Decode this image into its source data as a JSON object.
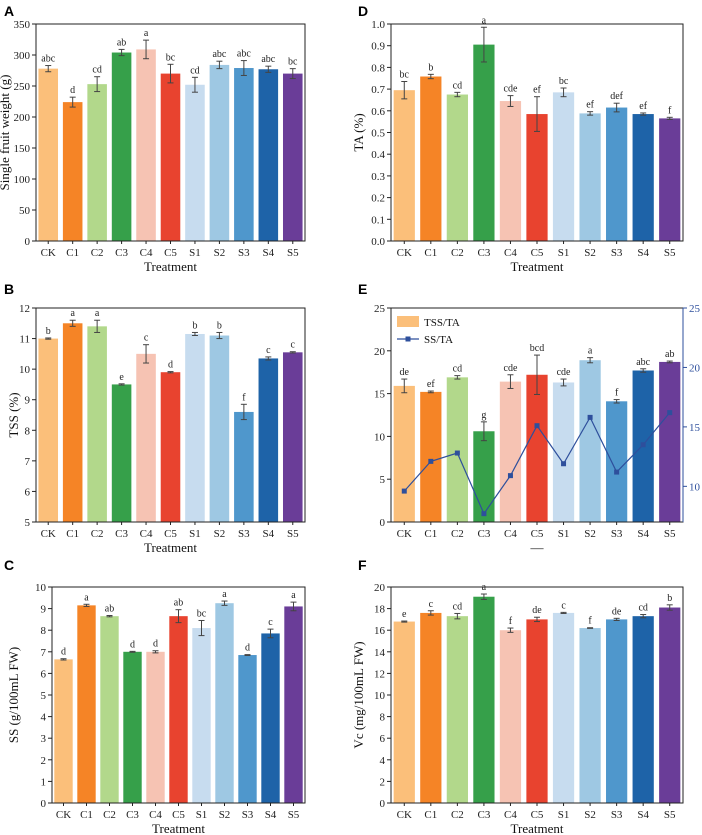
{
  "colors": {
    "CK": "#fbbf7a",
    "C1": "#f58426",
    "C2": "#b2d88b",
    "C3": "#36a04a",
    "C4": "#f6c3b3",
    "C5": "#e8432f",
    "S1": "#c7dcef",
    "S2": "#9ec8e3",
    "S3": "#4f97cc",
    "S4": "#1e63a8",
    "S5": "#6a3d98",
    "line": "#2e4f9c"
  },
  "chart_data": [
    {
      "panel": "A",
      "type": "bar",
      "categories": [
        "CK",
        "C1",
        "C2",
        "C3",
        "C4",
        "C5",
        "S1",
        "S2",
        "S3",
        "S4",
        "S5"
      ],
      "values": [
        278,
        224,
        253,
        304,
        309,
        270,
        252,
        284,
        279,
        277,
        270
      ],
      "errors": [
        5,
        8,
        12,
        5,
        15,
        15,
        12,
        6,
        12,
        5,
        8
      ],
      "letters": [
        "abc",
        "d",
        "cd",
        "ab",
        "a",
        "bc",
        "cd",
        "abc",
        "abc",
        "abc",
        "bc"
      ],
      "ylabel": "Single fruit weight (g)",
      "xlabel": "Treatment",
      "ylim": [
        0,
        350
      ],
      "yticks": [
        0,
        50,
        100,
        150,
        200,
        250,
        300,
        350
      ]
    },
    {
      "panel": "D",
      "type": "bar",
      "categories": [
        "CK",
        "C1",
        "C2",
        "C3",
        "C4",
        "C5",
        "S1",
        "S2",
        "S3",
        "S4",
        "S5"
      ],
      "values": [
        0.695,
        0.758,
        0.675,
        0.905,
        0.645,
        0.585,
        0.685,
        0.588,
        0.615,
        0.585,
        0.565
      ],
      "errors": [
        0.04,
        0.01,
        0.01,
        0.08,
        0.025,
        0.08,
        0.02,
        0.008,
        0.02,
        0.005,
        0.005
      ],
      "letters": [
        "bc",
        "b",
        "cd",
        "a",
        "cde",
        "ef",
        "bc",
        "ef",
        "def",
        "ef",
        "f"
      ],
      "ylabel": "TA (%)",
      "xlabel": "Treatment",
      "ylim": [
        0,
        1.0
      ],
      "yticks": [
        "0.0",
        "0.1",
        "0.2",
        "0.3",
        "0.4",
        "0.5",
        "0.6",
        "0.7",
        "0.8",
        "0.9",
        "1.0"
      ]
    },
    {
      "panel": "B",
      "type": "bar",
      "categories": [
        "CK",
        "C1",
        "C2",
        "C3",
        "C4",
        "C5",
        "S1",
        "S2",
        "S3",
        "S4",
        "S5"
      ],
      "values": [
        11.0,
        11.5,
        11.4,
        9.5,
        10.5,
        9.9,
        11.15,
        11.1,
        8.6,
        10.35,
        10.55
      ],
      "errors": [
        0.02,
        0.1,
        0.2,
        0.02,
        0.3,
        0.02,
        0.05,
        0.1,
        0.25,
        0.05,
        0.02
      ],
      "letters": [
        "b",
        "a",
        "a",
        "e",
        "c",
        "d",
        "b",
        "b",
        "f",
        "c",
        "c"
      ],
      "ylabel": "TSS (%)",
      "xlabel": "Treatment",
      "ylim": [
        5,
        12
      ],
      "yticks": [
        5,
        6,
        7,
        8,
        9,
        10,
        11,
        12
      ]
    },
    {
      "panel": "E",
      "type": "bar+line",
      "categories": [
        "CK",
        "C1",
        "C2",
        "C3",
        "C4",
        "C5",
        "S1",
        "S2",
        "S3",
        "S4",
        "S5"
      ],
      "series": [
        {
          "name": "TSS/TA",
          "type": "bar",
          "values": [
            15.9,
            15.2,
            16.9,
            10.6,
            16.4,
            17.2,
            16.3,
            18.9,
            14.1,
            17.7,
            18.7
          ],
          "errors": [
            0.8,
            0.1,
            0.2,
            1.1,
            0.8,
            2.3,
            0.4,
            0.3,
            0.2,
            0.2,
            0.1
          ],
          "letters": [
            "de",
            "ef",
            "cd",
            "g",
            "cde",
            "bcd",
            "cde",
            "a",
            "f",
            "abc",
            "ab"
          ]
        },
        {
          "name": "SS/TA",
          "type": "line",
          "axis": "right",
          "values": [
            9.6,
            12.1,
            12.8,
            7.7,
            10.9,
            15.1,
            11.9,
            15.8,
            11.2,
            13.5,
            16.2
          ]
        }
      ],
      "xlabel": "—",
      "ylim": [
        0,
        25
      ],
      "yticks": [
        0,
        5,
        10,
        15,
        20,
        25
      ],
      "y2lim": [
        7,
        25
      ],
      "y2ticks": [
        10,
        15,
        20,
        25
      ]
    },
    {
      "panel": "C",
      "type": "bar",
      "categories": [
        "CK",
        "C1",
        "C2",
        "C3",
        "C4",
        "C5",
        "S1",
        "S2",
        "S3",
        "S4",
        "S5"
      ],
      "values": [
        6.65,
        9.15,
        8.65,
        7.0,
        7.0,
        8.65,
        8.1,
        9.25,
        6.85,
        7.85,
        9.1
      ],
      "errors": [
        0.03,
        0.05,
        0.03,
        0.02,
        0.05,
        0.3,
        0.35,
        0.1,
        0.02,
        0.2,
        0.2
      ],
      "letters": [
        "d",
        "a",
        "ab",
        "d",
        "d",
        "ab",
        "bc",
        "a",
        "d",
        "c",
        "a"
      ],
      "ylabel": "SS (g/100mL FW)",
      "xlabel": "Treatment",
      "ylim": [
        0,
        10
      ],
      "yticks": [
        0,
        1,
        2,
        3,
        4,
        5,
        6,
        7,
        8,
        9,
        10
      ]
    },
    {
      "panel": "F",
      "type": "bar",
      "categories": [
        "CK",
        "C1",
        "C2",
        "C3",
        "C4",
        "C5",
        "S1",
        "S2",
        "S3",
        "S4",
        "S5"
      ],
      "values": [
        16.8,
        17.6,
        17.3,
        19.1,
        16.0,
        17.0,
        17.6,
        16.2,
        17.0,
        17.3,
        18.1
      ],
      "errors": [
        0.05,
        0.2,
        0.25,
        0.25,
        0.2,
        0.2,
        0.05,
        0.03,
        0.1,
        0.15,
        0.25
      ],
      "letters": [
        "e",
        "c",
        "cd",
        "a",
        "f",
        "de",
        "c",
        "f",
        "de",
        "cd",
        "b"
      ],
      "ylabel": "Vc (mg/100mL FW)",
      "xlabel": "Treatment",
      "ylim": [
        0,
        20
      ],
      "yticks": [
        0,
        2,
        4,
        6,
        8,
        10,
        12,
        14,
        16,
        18,
        20
      ]
    }
  ]
}
